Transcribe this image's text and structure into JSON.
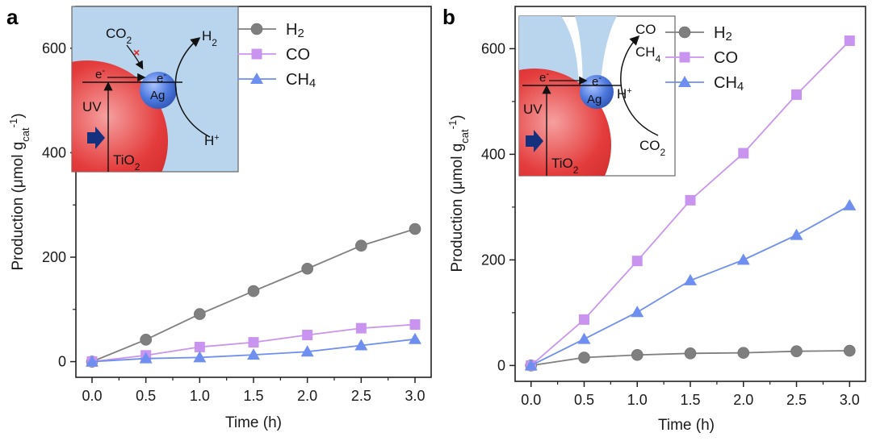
{
  "chart_data": [
    {
      "panel_label": "a",
      "type": "line",
      "x": [
        0.0,
        0.5,
        1.0,
        1.5,
        2.0,
        2.5,
        3.0
      ],
      "xticks": [
        "0.0",
        "0.5",
        "1.0",
        "1.5",
        "2.0",
        "2.5",
        "3.0"
      ],
      "yticks": [
        "0",
        "200",
        "400",
        "600"
      ],
      "xlim": [
        -0.15,
        3.15
      ],
      "ylim": [
        -30,
        680
      ],
      "xlabel": "Time (h)",
      "ylabel": "Production (μmol g",
      "ylabel_sub": "cat",
      "ylabel_sup": "-1",
      "ylabel_end": ")",
      "grid": false,
      "legend_position": "top-right",
      "series": [
        {
          "name": "H",
          "name_sub": "2",
          "marker": "circle",
          "color": "#7f7f7f",
          "values": [
            0,
            42,
            91,
            135,
            178,
            222,
            254
          ]
        },
        {
          "name": "CO",
          "name_sub": "",
          "marker": "square",
          "color": "#c894f0",
          "values": [
            0,
            12,
            28,
            37,
            51,
            64,
            71
          ]
        },
        {
          "name": "CH",
          "name_sub": "4",
          "marker": "triangle",
          "color": "#6f8ff0",
          "values": [
            0,
            6,
            8,
            13,
            19,
            31,
            43
          ]
        }
      ],
      "inset": {
        "labels": {
          "co2": "CO",
          "co2_sub": "2",
          "h2": "H",
          "h2_sub": "2",
          "e1": "e",
          "e1_sup": "-",
          "e2": "e",
          "e2_sup": "-",
          "ag": "Ag",
          "uv": "UV",
          "tio2": "TiO",
          "tio2_sub": "2",
          "hplus": "H",
          "hplus_sup": "+",
          "cross": "×"
        }
      }
    },
    {
      "panel_label": "b",
      "type": "line",
      "x": [
        0.0,
        0.5,
        1.0,
        1.5,
        2.0,
        2.5,
        3.0
      ],
      "xticks": [
        "0.0",
        "0.5",
        "1.0",
        "1.5",
        "2.0",
        "2.5",
        "3.0"
      ],
      "yticks": [
        "0",
        "200",
        "400",
        "600"
      ],
      "xlim": [
        -0.15,
        3.15
      ],
      "ylim": [
        -30,
        680
      ],
      "xlabel": "Time (h)",
      "ylabel": "Production (μmol g",
      "ylabel_sub": "cat",
      "ylabel_sup": "-1",
      "ylabel_end": ")",
      "grid": false,
      "legend_position": "top-right",
      "series": [
        {
          "name": "H",
          "name_sub": "2",
          "marker": "circle",
          "color": "#7f7f7f",
          "values": [
            0,
            15,
            20,
            23,
            24,
            27,
            28
          ]
        },
        {
          "name": "CO",
          "name_sub": "",
          "marker": "square",
          "color": "#c894f0",
          "values": [
            0,
            87,
            198,
            313,
            402,
            513,
            615
          ]
        },
        {
          "name": "CH",
          "name_sub": "4",
          "marker": "triangle",
          "color": "#6f8ff0",
          "values": [
            0,
            50,
            101,
            161,
            200,
            247,
            303
          ]
        }
      ],
      "inset": {
        "labels": {
          "co": "CO",
          "ch4": "CH",
          "ch4_sub": "4",
          "co2": "CO",
          "co2_sub": "2",
          "e1": "e",
          "e1_sup": "-",
          "e2": "e",
          "e2_sup": "-",
          "ag": "Ag",
          "uv": "UV",
          "tio2": "TiO",
          "tio2_sub": "2",
          "hplus": "H",
          "hplus_sup": "+"
        }
      }
    }
  ]
}
